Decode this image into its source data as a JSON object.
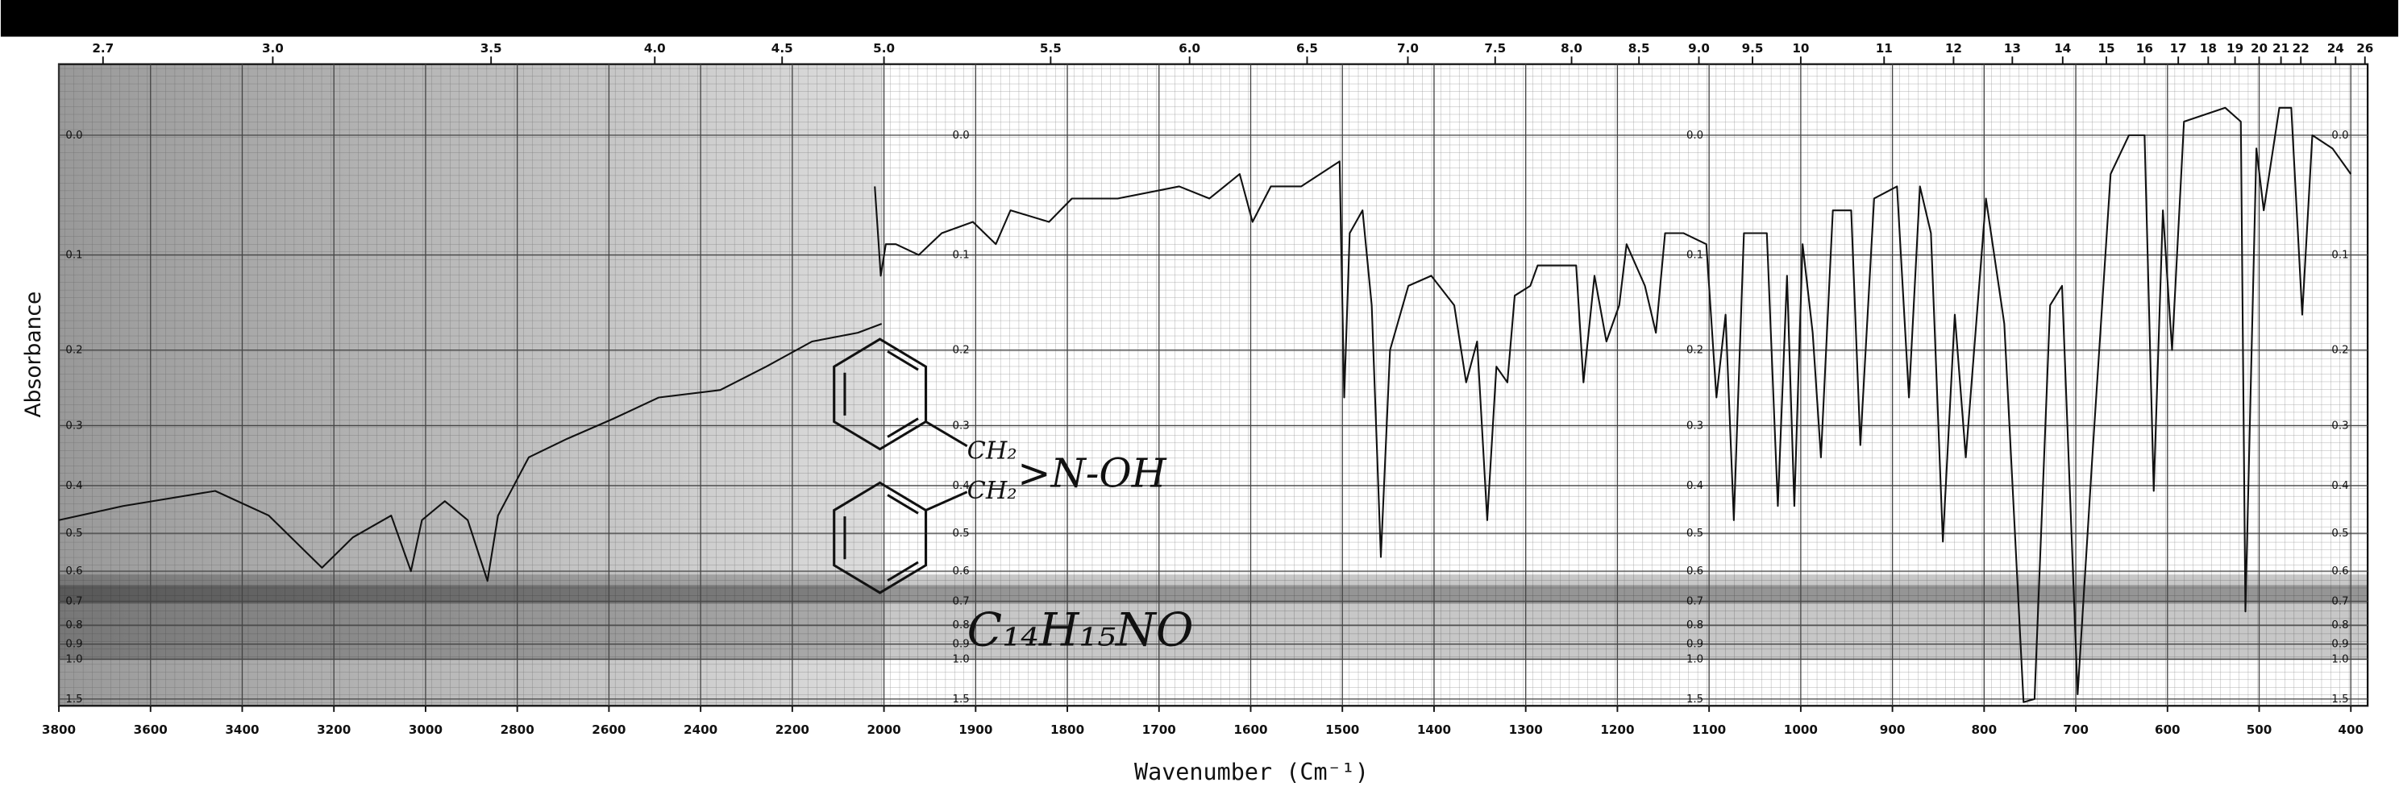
{
  "chart_data": {
    "type": "line",
    "xlabel": "Wavenumber (Cm⁻¹)",
    "ylabel": "Absorbance",
    "color": "#111111",
    "grid": true,
    "yscale": "transmittance",
    "xlim": [
      3800,
      400
    ],
    "xticks": [
      3800,
      3600,
      3400,
      3200,
      3000,
      2800,
      2600,
      2400,
      2200,
      2000,
      1900,
      1800,
      1700,
      1600,
      1500,
      1400,
      1300,
      1200,
      1100,
      1000,
      900,
      800,
      700,
      600,
      500,
      400
    ],
    "x2ticks": [
      2.7,
      {
        "value": 3,
        "label": "3.0"
      },
      3.5,
      {
        "value": 4,
        "label": "4.0"
      },
      4.5,
      {
        "value": 5,
        "label": "5.0"
      },
      5.5,
      {
        "value": 6,
        "label": "6.0"
      },
      6.5,
      {
        "value": 7,
        "label": "7.0"
      },
      7.5,
      {
        "value": 8,
        "label": "8.0"
      },
      8.5,
      {
        "value": 9,
        "label": "9.0"
      },
      9.5,
      10,
      11,
      12,
      13,
      14,
      15,
      16,
      17,
      18,
      19,
      20,
      21,
      22,
      24,
      26
    ],
    "ylim": [
      -0.05,
      1.7
    ],
    "yticks": [
      {
        "value": 0,
        "label": "0.0"
      },
      0.1,
      0.2,
      0.3,
      0.4,
      0.5,
      0.6,
      0.7,
      0.8,
      0.9,
      {
        "value": 1,
        "label": "1.0"
      },
      1.5
    ],
    "x": [
      3800,
      3660,
      3459,
      3342,
      3226,
      3159,
      3075,
      3032,
      3008,
      2958,
      2908,
      2865,
      2842,
      2775,
      2691,
      2591,
      2491,
      2357,
      2257,
      2157,
      2057,
      2005,
      2010,
      2020,
      2007,
      1998,
      1987,
      1962,
      1937,
      1903,
      1878,
      1862,
      1820,
      1795,
      1745,
      1678,
      1645,
      1612,
      1598,
      1578,
      1545,
      1503,
      1498,
      1492,
      1478,
      1468,
      1458,
      1448,
      1428,
      1403,
      1378,
      1365,
      1353,
      1342,
      1332,
      1320,
      1312,
      1295,
      1287,
      1245,
      1237,
      1225,
      1212,
      1198,
      1190,
      1170,
      1158,
      1148,
      1128,
      1103,
      1092,
      1082,
      1073,
      1062,
      1037,
      1025,
      1015,
      1007,
      998,
      987,
      978,
      965,
      945,
      935,
      920,
      895,
      882,
      870,
      858,
      845,
      832,
      820,
      798,
      778,
      757,
      745,
      728,
      715,
      698,
      682,
      662,
      642,
      625,
      615,
      605,
      595,
      582,
      537,
      520,
      515,
      503,
      495,
      478,
      465,
      453,
      442,
      420,
      400
    ],
    "values": [
      0.47,
      0.44,
      0.41,
      0.46,
      0.59,
      0.51,
      0.46,
      0.6,
      0.47,
      0.43,
      0.47,
      0.63,
      0.46,
      0.35,
      0.32,
      0.29,
      0.26,
      0.25,
      0.22,
      0.19,
      0.18,
      0.17,
      null,
      0.04,
      0.12,
      0.09,
      0.09,
      0.1,
      0.08,
      0.07,
      0.09,
      0.06,
      0.07,
      0.05,
      0.05,
      0.04,
      0.05,
      0.03,
      0.07,
      0.04,
      0.04,
      0.02,
      0.26,
      0.08,
      0.06,
      0.15,
      0.56,
      0.2,
      0.13,
      0.12,
      0.15,
      0.24,
      0.19,
      0.47,
      0.22,
      0.24,
      0.14,
      0.13,
      0.11,
      0.11,
      0.24,
      0.12,
      0.19,
      0.15,
      0.09,
      0.13,
      0.18,
      0.08,
      0.08,
      0.09,
      0.26,
      0.16,
      0.47,
      0.08,
      0.08,
      0.44,
      0.12,
      0.44,
      0.09,
      0.18,
      0.35,
      0.06,
      0.06,
      0.33,
      0.05,
      0.04,
      0.26,
      0.04,
      0.08,
      0.52,
      0.16,
      0.35,
      0.05,
      0.17,
      1.58,
      1.5,
      0.15,
      0.13,
      1.4,
      0.35,
      0.03,
      0,
      0,
      0.41,
      0.06,
      0.2,
      -0.01,
      -0.02,
      -0.01,
      0.74,
      0.01,
      0.06,
      -0.02,
      -0.02,
      0.16,
      0,
      0.01,
      0.03
    ],
    "annotations": [
      "CH₂",
      "CH₂",
      "&gt;N-OH",
      "C₁₄H₁₅NO"
    ]
  }
}
